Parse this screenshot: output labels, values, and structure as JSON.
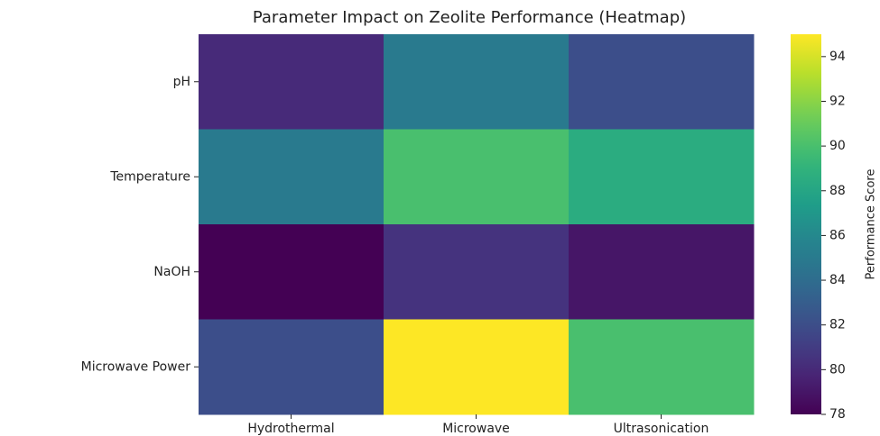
{
  "chart_data": {
    "type": "heatmap",
    "title": "Parameter Impact on Zeolite Performance (Heatmap)",
    "rows": [
      "pH",
      "Temperature",
      "NaOH",
      "Microwave Power"
    ],
    "columns": [
      "Hydrothermal",
      "Microwave",
      "Ultrasonication"
    ],
    "values": [
      [
        80,
        85,
        82
      ],
      [
        85,
        90,
        88.5
      ],
      [
        78,
        80.5,
        79
      ],
      [
        82,
        95,
        90
      ]
    ],
    "colormap": "viridis",
    "colorbar_label": "Performance Score",
    "clim": [
      78,
      95
    ],
    "cticks": [
      78,
      80,
      82,
      84,
      86,
      88,
      90,
      92,
      94
    ]
  }
}
